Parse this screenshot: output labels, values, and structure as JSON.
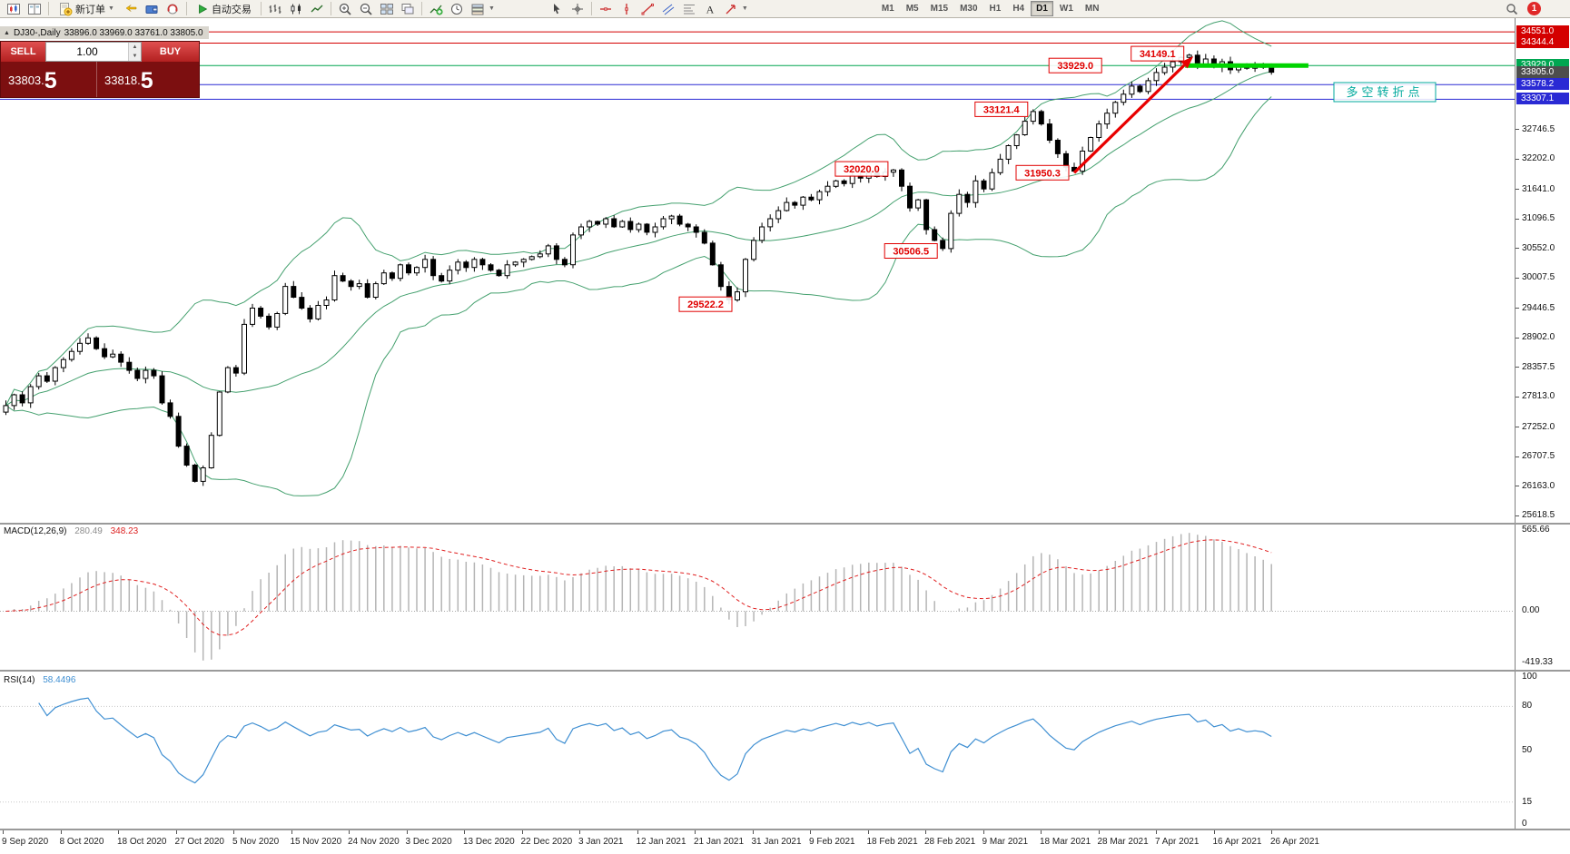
{
  "toolbar": {
    "new_order": "新订单",
    "autotrade": "自动交易",
    "timeframes": [
      "M1",
      "M5",
      "M15",
      "M30",
      "H1",
      "H4",
      "D1",
      "W1",
      "MN"
    ],
    "active_timeframe": "D1",
    "notification_count": "1"
  },
  "chart_header": {
    "symbol_period": "DJ30-,Daily",
    "ohlc": "33896.0 33969.0 33761.0 33805.0"
  },
  "trade_panel": {
    "sell_label": "SELL",
    "buy_label": "BUY",
    "volume": "1.00",
    "sell_price": {
      "main": "33803.",
      "big": "5"
    },
    "buy_price": {
      "main": "33818.",
      "big": "5"
    }
  },
  "price_scale": {
    "tags": [
      {
        "label": "34551.0",
        "price": 34551.0,
        "bg": "#d40000"
      },
      {
        "label": "34344.4",
        "price": 34344.4,
        "bg": "#d40000"
      },
      {
        "label": "33929.0",
        "price": 33929.0,
        "bg": "#00a651"
      },
      {
        "label": "33805.0",
        "price": 33805.0,
        "bg": "#4d4d4d"
      },
      {
        "label": "33578.2",
        "price": 33578.2,
        "bg": "#2a2ad4"
      },
      {
        "label": "33307.1",
        "price": 33307.1,
        "bg": "#2a2ad4"
      }
    ],
    "ticks": [
      32746.5,
      32202.0,
      31641.0,
      31096.5,
      30552.0,
      30007.5,
      29446.5,
      28902.0,
      28357.5,
      27813.0,
      27252.0,
      26707.5,
      26163.0,
      25618.5
    ]
  },
  "macd_panel": {
    "name": "MACD(12,26,9)",
    "value_main": "280.49",
    "value_signal": "348.23",
    "scale_top": "565.66",
    "scale_zero": "0.00",
    "scale_bottom": "-419.33"
  },
  "rsi_panel": {
    "name": "RSI(14)",
    "value": "58.4496",
    "scale": [
      "100",
      "80",
      "50",
      "15",
      "0"
    ]
  },
  "time_axis": [
    "9 Sep 2020",
    "8 Oct 2020",
    "18 Oct 2020",
    "27 Oct 2020",
    "5 Nov 2020",
    "15 Nov 2020",
    "24 Nov 2020",
    "3 Dec 2020",
    "13 Dec 2020",
    "22 Dec 2020",
    "3 Jan 2021",
    "12 Jan 2021",
    "21 Jan 2021",
    "31 Jan 2021",
    "9 Feb 2021",
    "18 Feb 2021",
    "28 Feb 2021",
    "9 Mar 2021",
    "18 Mar 2021",
    "28 Mar 2021",
    "7 Apr 2021",
    "16 Apr 2021",
    "26 Apr 2021"
  ],
  "chart_data": {
    "type": "candlestick",
    "symbol": "DJ30-",
    "timeframe": "Daily",
    "title": "DJ30-,Daily 33896.0 33969.0 33761.0 33805.0",
    "closes": [
      27650,
      27850,
      27700,
      28000,
      28200,
      28100,
      28350,
      28500,
      28650,
      28800,
      28900,
      28700,
      28550,
      28600,
      28450,
      28300,
      28150,
      28300,
      28200,
      27700,
      27450,
      26900,
      26550,
      26250,
      26500,
      27100,
      27900,
      28350,
      28250,
      29150,
      29450,
      29300,
      29100,
      29350,
      29850,
      29650,
      29450,
      29250,
      29500,
      29600,
      30050,
      29950,
      29850,
      29900,
      29650,
      29900,
      30100,
      30000,
      30250,
      30100,
      30200,
      30350,
      30050,
      29950,
      30150,
      30300,
      30200,
      30350,
      30250,
      30150,
      30050,
      30250,
      30300,
      30350,
      30400,
      30450,
      30600,
      30350,
      30250,
      30800,
      30950,
      31050,
      31000,
      31100,
      30950,
      31050,
      30900,
      31000,
      30850,
      30950,
      31100,
      31150,
      31000,
      30950,
      30850,
      30650,
      30250,
      29850,
      29600,
      29750,
      30350,
      30700,
      30950,
      31100,
      31250,
      31400,
      31350,
      31500,
      31450,
      31600,
      31700,
      31800,
      31750,
      31900,
      31850,
      31950,
      31880,
      31960,
      32000,
      31700,
      31300,
      31450,
      30900,
      30700,
      30550,
      31200,
      31550,
      31400,
      31800,
      31650,
      31950,
      32200,
      32450,
      32650,
      32900,
      33080,
      32850,
      32550,
      32300,
      32050,
      31980,
      32350,
      32600,
      32850,
      33050,
      33250,
      33400,
      33550,
      33450,
      33650,
      33800,
      33900,
      34000,
      34080,
      34120,
      33950,
      34050,
      33900,
      34000,
      33850,
      33950,
      33880,
      33920,
      33896,
      33805
    ],
    "overrides": {
      "88": {
        "low": 29522.2
      },
      "108": {
        "high": 32020.0
      },
      "114": {
        "low": 30506.5
      },
      "125": {
        "high": 33121.4
      },
      "130": {
        "low": 31950.3
      },
      "144": {
        "high": 34149.1
      },
      "154": {
        "open": 33896.0,
        "high": 33969.0,
        "low": 33761.0,
        "close": 33805.0
      }
    },
    "indicators": {
      "bollinger": {
        "period": 20,
        "deviation": 2,
        "color": "#44a06e"
      },
      "macd": {
        "fast": 12,
        "slow": 26,
        "signal": 9,
        "hist_color": "#b5b5b5",
        "signal_color": "#e02020"
      },
      "rsi": {
        "period": 14,
        "color": "#3f8fd2"
      }
    },
    "hlines": [
      {
        "price": 34551.0,
        "color": "#d40000"
      },
      {
        "price": 34344.4,
        "color": "#d40000"
      },
      {
        "price": 33929.0,
        "color": "#00a651"
      },
      {
        "price": 33578.2,
        "color": "#2a2ad4"
      },
      {
        "price": 33307.1,
        "color": "#2a2ad4"
      }
    ],
    "callouts": [
      {
        "text": "29522.2",
        "index": 89,
        "price": 29522.2
      },
      {
        "text": "32020.0",
        "index": 108,
        "price": 32020.0
      },
      {
        "text": "30506.5",
        "index": 114,
        "price": 30506.5
      },
      {
        "text": "33121.4",
        "index": 125,
        "price": 33121.4
      },
      {
        "text": "31950.3",
        "index": 130,
        "price": 31950.3
      },
      {
        "text": "33929.0",
        "index": 134,
        "price": 33929.0
      },
      {
        "text": "34149.1",
        "index": 144,
        "price": 34149.1
      }
    ],
    "trend_arrow": {
      "from": {
        "index": 130,
        "price": 31950.3
      },
      "to": {
        "index": 144.5,
        "price": 34100
      },
      "color": "#e80000"
    },
    "level_segment": {
      "from_index": 143.5,
      "to_index": 158.5,
      "price": 33929.0,
      "color": "#00d400"
    },
    "note": {
      "text": "多空转折点",
      "index": 161.6,
      "price": 33430,
      "color": "#00a99d"
    }
  }
}
